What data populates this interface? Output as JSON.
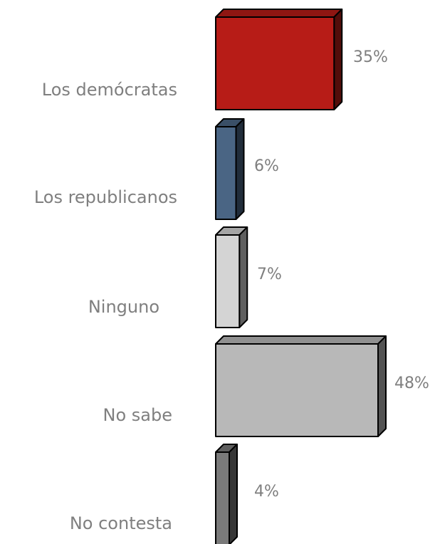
{
  "chart_data": {
    "type": "bar",
    "orientation": "horizontal",
    "style": "3d",
    "categories": [
      "Los demócratas",
      "Los republicanos",
      "Ninguno",
      "No sabe",
      "No contesta"
    ],
    "values": [
      35,
      6,
      7,
      48,
      4
    ],
    "value_labels": [
      "35%",
      "6%",
      "7%",
      "48%",
      "4%"
    ],
    "unit": "%",
    "bar_colors": [
      "#B71C17",
      "#4A6584",
      "#D4D4D4",
      "#B8B8B8",
      "#7A7A7A"
    ],
    "legend": "none",
    "grid": false,
    "axes_visible": false
  }
}
